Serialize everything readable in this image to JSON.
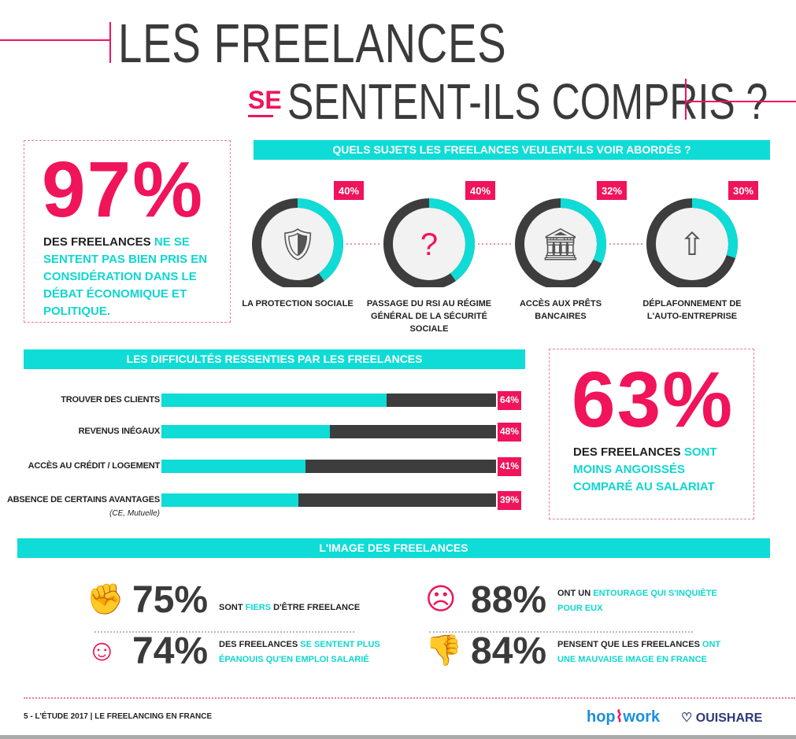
{
  "title": {
    "line1": "LES FREELANCES",
    "se": "SE",
    "line2": "SENTENT-ILS COMPRIS ?"
  },
  "box97": {
    "value": "97%",
    "t1": "DES FREELANCES",
    "t2": "NE SE SENTENT PAS BIEN PRIS EN CONSIDÉRATION DANS LE DÉBAT ÉCONOMIQUE ET POLITIQUE."
  },
  "box63": {
    "value": "63%",
    "t1": "DES FREELANCES",
    "t2": "SONT MOINS ANGOISSÉS COMPARÉ AU SALARIAT"
  },
  "colors": {
    "cyan": "#0fdcd6",
    "pink": "#f0145a",
    "dark": "#3d3d3d"
  },
  "chart_data": [
    {
      "type": "pie",
      "title": "QUELS SUJETS LES FREELANCES VEULENT-ILS VOIR ABORDÉS ?",
      "categories": [
        "LA PROTECTION SOCIALE",
        "PASSAGE DU RSI AU RÉGIME GÉNÉRAL DE LA SÉCURITÉ SOCIALE",
        "ACCÈS AUX PRÊTS BANCAIRES",
        "DÉPLAFONNEMENT DE L'AUTO-ENTREPRISE"
      ],
      "values": [
        40,
        40,
        32,
        30
      ],
      "labels": [
        "40%",
        "40%",
        "32%",
        "30%"
      ],
      "icons": [
        "shield-check-icon",
        "documents-question-icon",
        "bank-icon",
        "growth-chart-icon"
      ]
    },
    {
      "type": "bar",
      "title": "LES DIFFICULTÉS RESSENTIES PAR LES FREELANCES",
      "categories": [
        "TROUVER DES CLIENTS",
        "REVENUS INÉGAUX",
        "ACCÈS AU CRÉDIT / LOGEMENT",
        "ABSENCE DE CERTAINS AVANTAGES"
      ],
      "sublabels": [
        "",
        "",
        "",
        "(CE, Mutuelle)"
      ],
      "values": [
        64,
        48,
        41,
        39
      ],
      "labels": [
        "64%",
        "48%",
        "41%",
        "39%"
      ],
      "xlim": [
        0,
        100
      ]
    }
  ],
  "image": {
    "title": "L'IMAGE DES FREELANCES",
    "stats": [
      {
        "value": "75%",
        "a": "SONT ",
        "b": "FIERS",
        "c": " D'ÊTRE FREELANCE",
        "icon": "fist-icon"
      },
      {
        "value": "74%",
        "a": "DES FREELANCES ",
        "b": "SE SENTENT PLUS ÉPANOUIS QU'EN EMPLOI SALARIÉ",
        "c": "",
        "icon": "happy-face-icon"
      },
      {
        "value": "88%",
        "a": "ONT UN ",
        "b": "ENTOURAGE QUI S'INQUIÈTE POUR EUX",
        "c": "",
        "icon": "worried-face-icon"
      },
      {
        "value": "84%",
        "a": "PENSENT QUE LES FREELANCES ",
        "b": "ONT UNE MAUVAISE IMAGE EN FRANCE",
        "c": "",
        "icon": "thumbs-down-icon"
      }
    ]
  },
  "footer": {
    "left": "5 - L'ÉTUDE 2017",
    "right": "LE FREELANCING EN FRANCE",
    "logo1a": "hop",
    "logo1b": "work",
    "logo2": "OUISHARE"
  }
}
